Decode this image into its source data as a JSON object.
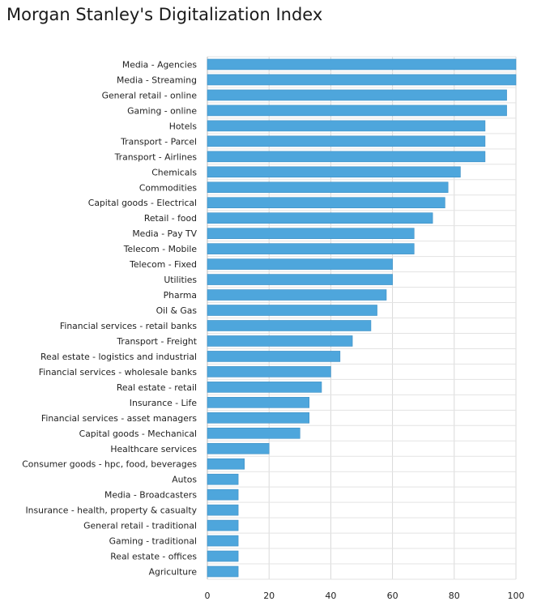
{
  "chart_data": {
    "type": "bar",
    "orientation": "horizontal",
    "title": "Morgan Stanley's Digitalization Index",
    "xlabel": "",
    "ylabel": "",
    "xlim": [
      0,
      100
    ],
    "x_ticks": [
      0,
      20,
      40,
      60,
      80,
      100
    ],
    "grid": true,
    "legend": "none",
    "bar_color": "#4ea6dc",
    "categories": [
      "Media - Agencies",
      "Media - Streaming",
      "General retail - online",
      "Gaming - online",
      "Hotels",
      "Transport - Parcel",
      "Transport - Airlines",
      "Chemicals",
      "Commodities",
      "Capital goods - Electrical",
      "Retail - food",
      "Media - Pay TV",
      "Telecom - Mobile",
      "Telecom - Fixed",
      "Utilities",
      "Pharma",
      "Oil & Gas",
      "Financial services - retail banks",
      "Transport - Freight",
      "Real estate - logistics and industrial",
      "Financial services - wholesale banks",
      "Real estate - retail",
      "Insurance - Life",
      "Financial services - asset managers",
      "Capital goods - Mechanical",
      "Healthcare services",
      "Consumer goods - hpc, food, beverages",
      "Autos",
      "Media - Broadcasters",
      "Insurance - health, property & casualty",
      "General retail - traditional",
      "Gaming - traditional",
      "Real estate - offices",
      "Agriculture"
    ],
    "values": [
      100,
      100,
      97,
      97,
      90,
      90,
      90,
      82,
      78,
      77,
      73,
      67,
      67,
      60,
      60,
      58,
      55,
      53,
      47,
      43,
      40,
      37,
      33,
      33,
      30,
      20,
      12,
      10,
      10,
      10,
      10,
      10,
      10,
      10
    ]
  }
}
